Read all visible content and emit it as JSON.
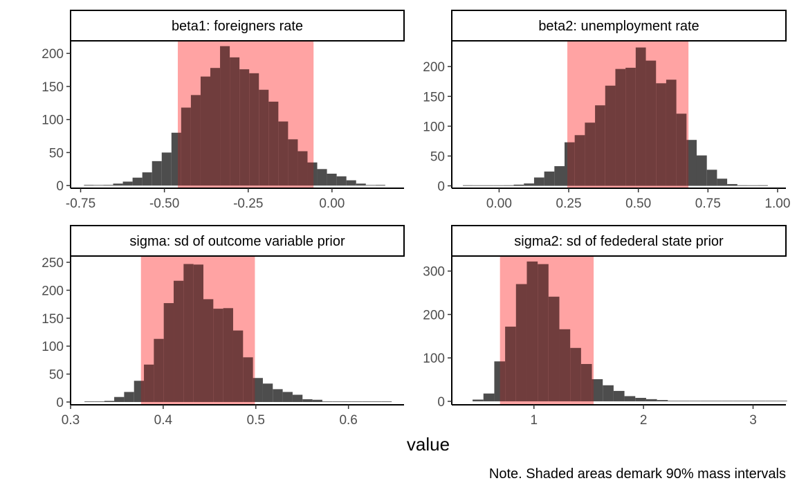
{
  "chart_data": {
    "type": "histogram-facets",
    "xlabel": "value",
    "caption": "Note. Shaded areas demark 90% mass intervals",
    "colors": {
      "bar": "#4d4d4d",
      "interval": "#ff0000",
      "interval_alpha": 0.2
    },
    "panels": [
      {
        "title": "beta1: foreigners rate",
        "xlim": [
          -0.78,
          0.215
        ],
        "ylim": [
          -4,
          218
        ],
        "x_ticks": [
          -0.75,
          -0.5,
          -0.25,
          0.0
        ],
        "x_tick_labels": [
          "-0.75",
          "-0.50",
          "-0.25",
          "0.00"
        ],
        "y_ticks": [
          0,
          50,
          100,
          150,
          200
        ],
        "interval": [
          -0.46,
          -0.055
        ],
        "bins": {
          "start": -0.74,
          "width": 0.029,
          "counts": [
            1,
            0,
            1,
            3,
            6,
            12,
            20,
            37,
            50,
            80,
            118,
            137,
            165,
            178,
            211,
            194,
            176,
            170,
            145,
            127,
            97,
            70,
            52,
            35,
            25,
            18,
            14,
            8,
            3,
            0,
            1
          ]
        }
      },
      {
        "title": "beta2: unemployment rate",
        "xlim": [
          -0.17,
          1.03
        ],
        "ylim": [
          -4,
          242
        ],
        "x_ticks": [
          0.0,
          0.25,
          0.5,
          0.75,
          1.0
        ],
        "x_tick_labels": [
          "0.00",
          "0.25",
          "0.50",
          "0.75",
          "1.00"
        ],
        "y_ticks": [
          0,
          50,
          100,
          150,
          200
        ],
        "interval": [
          0.245,
          0.68
        ],
        "bins": {
          "start": -0.13,
          "width": 0.0365,
          "counts": [
            1,
            0,
            0,
            0,
            1,
            2,
            4,
            14,
            24,
            33,
            73,
            85,
            106,
            135,
            168,
            196,
            198,
            232,
            210,
            172,
            178,
            121,
            77,
            51,
            27,
            12,
            3,
            1,
            0,
            1
          ]
        }
      },
      {
        "title": "sigma: sd of outcome variable prior",
        "xlim": [
          0.3,
          0.66
        ],
        "ylim": [
          -5,
          260
        ],
        "x_ticks": [
          0.3,
          0.4,
          0.5,
          0.6
        ],
        "x_tick_labels": [
          "0.3",
          "0.4",
          "0.5",
          "0.6"
        ],
        "y_ticks": [
          0,
          50,
          100,
          150,
          200,
          250
        ],
        "interval": [
          0.376,
          0.499
        ],
        "bins": {
          "start": 0.315,
          "width": 0.0107,
          "counts": [
            1,
            1,
            2,
            9,
            18,
            38,
            67,
            113,
            177,
            217,
            247,
            246,
            184,
            167,
            168,
            128,
            80,
            43,
            33,
            23,
            18,
            13,
            5,
            4,
            1,
            0,
            1,
            0,
            0,
            0,
            1
          ]
        }
      },
      {
        "title": "sigma2: sd of fedederal state prior",
        "xlim": [
          0.25,
          3.3
        ],
        "ylim": [
          -8,
          333
        ],
        "x_ticks": [
          1,
          2,
          3
        ],
        "x_tick_labels": [
          "1",
          "2",
          "3"
        ],
        "y_ticks": [
          0,
          100,
          200,
          300
        ],
        "interval": [
          0.69,
          1.545
        ],
        "bins": {
          "start": 0.44,
          "width": 0.099,
          "counts": [
            4,
            18,
            92,
            172,
            270,
            322,
            316,
            241,
            166,
            123,
            86,
            51,
            37,
            24,
            12,
            8,
            5,
            3,
            1,
            1,
            0,
            0,
            0,
            1,
            0,
            0,
            0,
            0,
            1
          ]
        }
      }
    ]
  }
}
